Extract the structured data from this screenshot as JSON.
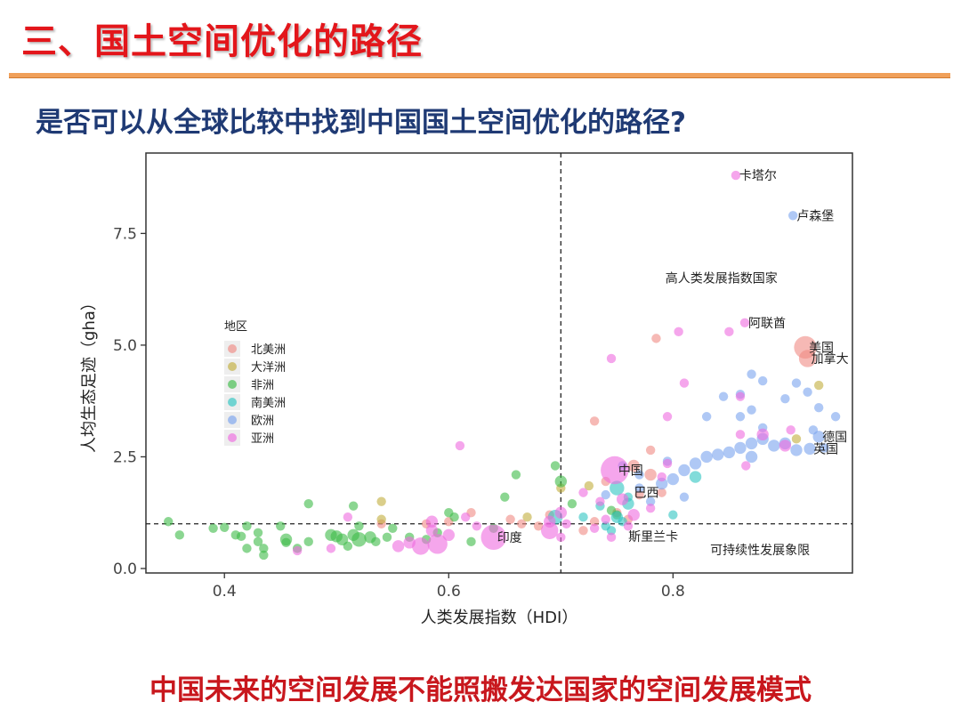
{
  "slide": {
    "title": "三、国土空间优化的路径",
    "question": "是否可以从全球比较中找到中国国土空间优化的路径?",
    "conclusion": "中国未来的空间发展不能照搬发达国家的空间发展模式"
  },
  "chart_data": {
    "type": "scatter",
    "title": "",
    "xlabel": "人类发展指数（HDI）",
    "ylabel": "人均生态足迹（gha）",
    "xlim": [
      0.33,
      0.96
    ],
    "ylim": [
      -0.1,
      9.3
    ],
    "xticks": [
      0.4,
      0.6,
      0.8
    ],
    "xtick_labels": [
      "0.4",
      "0.6",
      "0.8"
    ],
    "yticks": [
      0.0,
      2.5,
      5.0,
      7.5
    ],
    "ytick_labels": [
      "0.0",
      "2.5",
      "5.0",
      "7.5"
    ],
    "grid": false,
    "reference_lines": {
      "x": 0.7,
      "y": 1.0,
      "style": "dashed"
    },
    "legend": {
      "title": "地区",
      "placement": "left-middle",
      "entries": [
        {
          "name": "北美洲",
          "color": "#f08a84"
        },
        {
          "name": "大洋洲",
          "color": "#c2ae3c"
        },
        {
          "name": "非洲",
          "color": "#3dbb48"
        },
        {
          "name": "南美洲",
          "color": "#2ec5c2"
        },
        {
          "name": "欧洲",
          "color": "#7aa3ee"
        },
        {
          "name": "亚洲",
          "color": "#ee6be0"
        }
      ]
    },
    "annotations": [
      {
        "text": "卡塔尔",
        "x": 0.856,
        "y": 8.8
      },
      {
        "text": "卢森堡",
        "x": 0.907,
        "y": 7.9
      },
      {
        "text": "高人类发展指数国家",
        "x": 0.79,
        "y": 6.5
      },
      {
        "text": "阿联酋",
        "x": 0.864,
        "y": 5.5
      },
      {
        "text": "美国",
        "x": 0.918,
        "y": 4.95
      },
      {
        "text": "加拿大",
        "x": 0.92,
        "y": 4.7
      },
      {
        "text": "德国",
        "x": 0.93,
        "y": 2.95
      },
      {
        "text": "英国",
        "x": 0.922,
        "y": 2.68
      },
      {
        "text": "中国",
        "x": 0.748,
        "y": 2.2
      },
      {
        "text": "巴西",
        "x": 0.762,
        "y": 1.7
      },
      {
        "text": "印度",
        "x": 0.64,
        "y": 0.7
      },
      {
        "text": "斯里兰卡",
        "x": 0.757,
        "y": 0.72
      },
      {
        "text": "可持续性发展象限",
        "x": 0.83,
        "y": 0.42
      }
    ],
    "series": [
      {
        "name": "北美洲",
        "points": [
          [
            0.918,
            4.95,
            7
          ],
          [
            0.92,
            4.7,
            5
          ],
          [
            0.785,
            5.15,
            2
          ],
          [
            0.73,
            3.3,
            2
          ],
          [
            0.765,
            2.3,
            3
          ],
          [
            0.78,
            2.1,
            3
          ],
          [
            0.79,
            1.7,
            2
          ],
          [
            0.77,
            1.65,
            2
          ],
          [
            0.74,
            1.95,
            2
          ],
          [
            0.69,
            1.2,
            2
          ],
          [
            0.655,
            1.1,
            2
          ],
          [
            0.62,
            1.25,
            2
          ],
          [
            0.73,
            1.05,
            2
          ],
          [
            0.75,
            1.25,
            2
          ],
          [
            0.76,
            1.1,
            2
          ],
          [
            0.665,
            1.0,
            2
          ],
          [
            0.68,
            0.95,
            2
          ],
          [
            0.72,
            0.85,
            2
          ],
          [
            0.78,
            2.65,
            2
          ],
          [
            0.54,
            1.0,
            2
          ],
          [
            0.6,
            1.05,
            2
          ],
          [
            0.58,
            1.0,
            2
          ]
        ]
      },
      {
        "name": "大洋洲",
        "points": [
          [
            0.93,
            4.1,
            2
          ],
          [
            0.91,
            2.9,
            2
          ],
          [
            0.7,
            1.8,
            2
          ],
          [
            0.725,
            1.85,
            2
          ],
          [
            0.67,
            1.15,
            2
          ],
          [
            0.54,
            1.5,
            2
          ],
          [
            0.54,
            1.1,
            2
          ]
        ]
      },
      {
        "name": "非洲",
        "points": [
          [
            0.35,
            1.05,
            2
          ],
          [
            0.36,
            0.75,
            2
          ],
          [
            0.39,
            0.9,
            2
          ],
          [
            0.4,
            0.92,
            2
          ],
          [
            0.41,
            0.75,
            2
          ],
          [
            0.415,
            0.72,
            2
          ],
          [
            0.42,
            0.95,
            2
          ],
          [
            0.43,
            0.8,
            2
          ],
          [
            0.43,
            0.6,
            2
          ],
          [
            0.435,
            0.45,
            2
          ],
          [
            0.435,
            0.3,
            2
          ],
          [
            0.45,
            0.95,
            2
          ],
          [
            0.455,
            0.65,
            3
          ],
          [
            0.455,
            0.58,
            2
          ],
          [
            0.465,
            0.45,
            2
          ],
          [
            0.475,
            0.6,
            2
          ],
          [
            0.495,
            0.75,
            3
          ],
          [
            0.5,
            0.72,
            3
          ],
          [
            0.505,
            0.65,
            3
          ],
          [
            0.51,
            0.5,
            2
          ],
          [
            0.515,
            0.75,
            3
          ],
          [
            0.52,
            0.65,
            4
          ],
          [
            0.53,
            0.7,
            3
          ],
          [
            0.535,
            0.6,
            2
          ],
          [
            0.52,
            0.95,
            2
          ],
          [
            0.55,
            0.9,
            2
          ],
          [
            0.565,
            0.7,
            2
          ],
          [
            0.58,
            0.65,
            2
          ],
          [
            0.59,
            0.8,
            2
          ],
          [
            0.6,
            1.25,
            2
          ],
          [
            0.605,
            1.15,
            2
          ],
          [
            0.62,
            0.6,
            2
          ],
          [
            0.64,
            0.9,
            2
          ],
          [
            0.65,
            1.6,
            2
          ],
          [
            0.66,
            2.1,
            2
          ],
          [
            0.695,
            2.3,
            2
          ],
          [
            0.7,
            1.95,
            3
          ],
          [
            0.71,
            1.45,
            2
          ],
          [
            0.745,
            1.3,
            2
          ],
          [
            0.75,
            1.2,
            2
          ],
          [
            0.475,
            1.45,
            2
          ],
          [
            0.515,
            1.4,
            2
          ],
          [
            0.545,
            0.7,
            2
          ],
          [
            0.42,
            0.45,
            2
          ]
        ]
      },
      {
        "name": "南美洲",
        "points": [
          [
            0.75,
            1.8,
            4
          ],
          [
            0.76,
            1.45,
            3
          ],
          [
            0.75,
            1.15,
            3
          ],
          [
            0.74,
            0.95,
            2
          ],
          [
            0.72,
            1.15,
            2
          ],
          [
            0.735,
            1.4,
            2
          ],
          [
            0.755,
            1.05,
            2
          ],
          [
            0.745,
            0.85,
            2
          ],
          [
            0.8,
            1.2,
            2
          ],
          [
            0.82,
            2.05,
            3
          ],
          [
            0.76,
            1.6,
            2
          ],
          [
            0.695,
            1.15,
            4
          ]
        ]
      },
      {
        "name": "欧洲",
        "points": [
          [
            0.907,
            7.9,
            2
          ],
          [
            0.9,
            3.8,
            2
          ],
          [
            0.91,
            4.15,
            2
          ],
          [
            0.92,
            3.95,
            2
          ],
          [
            0.88,
            4.2,
            2
          ],
          [
            0.87,
            3.55,
            2
          ],
          [
            0.86,
            3.4,
            2
          ],
          [
            0.86,
            3.9,
            2
          ],
          [
            0.87,
            4.35,
            2
          ],
          [
            0.83,
            3.4,
            2
          ],
          [
            0.845,
            3.85,
            2
          ],
          [
            0.93,
            2.95,
            3
          ],
          [
            0.922,
            2.68,
            3
          ],
          [
            0.9,
            2.8,
            3
          ],
          [
            0.91,
            2.65,
            3
          ],
          [
            0.89,
            2.75,
            3
          ],
          [
            0.88,
            2.9,
            3
          ],
          [
            0.87,
            2.8,
            3
          ],
          [
            0.86,
            2.7,
            3
          ],
          [
            0.85,
            2.6,
            3
          ],
          [
            0.84,
            2.55,
            3
          ],
          [
            0.83,
            2.5,
            3
          ],
          [
            0.82,
            2.35,
            3
          ],
          [
            0.81,
            2.2,
            3
          ],
          [
            0.8,
            2.0,
            3
          ],
          [
            0.79,
            1.9,
            3
          ],
          [
            0.87,
            2.5,
            3
          ],
          [
            0.88,
            3.15,
            2
          ],
          [
            0.945,
            3.4,
            2
          ],
          [
            0.93,
            3.6,
            2
          ],
          [
            0.925,
            3.1,
            2
          ],
          [
            0.935,
            2.7,
            2
          ],
          [
            0.795,
            2.4,
            2
          ],
          [
            0.77,
            1.8,
            2
          ],
          [
            0.755,
            2.3,
            2
          ],
          [
            0.74,
            1.65,
            2
          ],
          [
            0.77,
            2.1,
            2
          ],
          [
            0.81,
            1.6,
            2
          ],
          [
            0.78,
            1.5,
            2
          ]
        ]
      },
      {
        "name": "亚洲",
        "points": [
          [
            0.856,
            8.8,
            2
          ],
          [
            0.864,
            5.5,
            2
          ],
          [
            0.85,
            5.3,
            2
          ],
          [
            0.805,
            5.3,
            2
          ],
          [
            0.745,
            4.7,
            2
          ],
          [
            0.81,
            4.15,
            2
          ],
          [
            0.795,
            3.4,
            2
          ],
          [
            0.86,
            3.85,
            2
          ],
          [
            0.61,
            2.75,
            2
          ],
          [
            0.748,
            2.2,
            9
          ],
          [
            0.79,
            2.05,
            2
          ],
          [
            0.795,
            2.35,
            2
          ],
          [
            0.88,
            3.0,
            3
          ],
          [
            0.9,
            2.75,
            3
          ],
          [
            0.905,
            3.1,
            2
          ],
          [
            0.86,
            3.0,
            2
          ],
          [
            0.865,
            2.3,
            2
          ],
          [
            0.64,
            0.7,
            8
          ],
          [
            0.59,
            0.55,
            6
          ],
          [
            0.575,
            0.5,
            5
          ],
          [
            0.555,
            0.5,
            3
          ],
          [
            0.565,
            0.58,
            3
          ],
          [
            0.585,
            0.85,
            3
          ],
          [
            0.585,
            1.05,
            3
          ],
          [
            0.6,
            0.75,
            3
          ],
          [
            0.69,
            0.85,
            5
          ],
          [
            0.69,
            1.05,
            3
          ],
          [
            0.7,
            1.25,
            3
          ],
          [
            0.705,
            1.0,
            2
          ],
          [
            0.72,
            1.7,
            2
          ],
          [
            0.735,
            1.5,
            2
          ],
          [
            0.755,
            1.55,
            3
          ],
          [
            0.765,
            1.2,
            3
          ],
          [
            0.76,
            0.95,
            2
          ],
          [
            0.745,
            0.7,
            2
          ],
          [
            0.7,
            0.7,
            2
          ],
          [
            0.625,
            0.95,
            2
          ],
          [
            0.615,
            1.15,
            2
          ],
          [
            0.495,
            0.45,
            2
          ],
          [
            0.465,
            0.4,
            2
          ],
          [
            0.51,
            1.15,
            2
          ],
          [
            0.73,
            0.9,
            2
          ],
          [
            0.74,
            1.1,
            2
          ],
          [
            0.78,
            1.35,
            2
          ]
        ]
      }
    ]
  }
}
